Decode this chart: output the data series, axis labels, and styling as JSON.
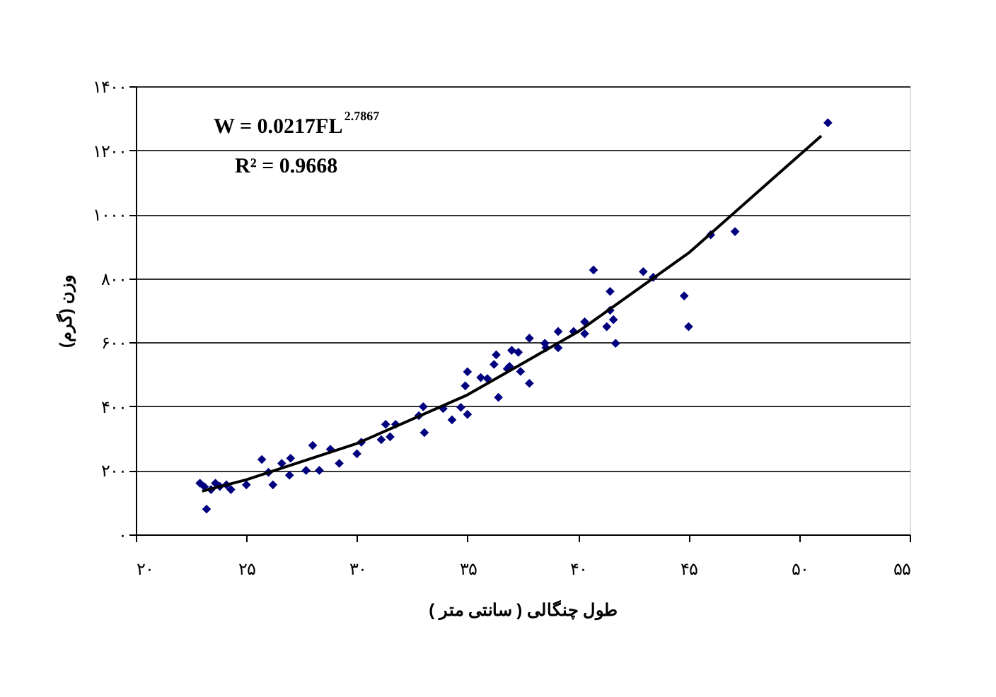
{
  "chart_data": {
    "type": "scatter",
    "xlabel": "طول چنگالی ( سانتی متر )",
    "ylabel": "وزن (گرم)",
    "annotations": [
      "W = 0.0217FL$^{2.7867}$",
      "R² = 0.9668"
    ],
    "xlim": [
      20,
      55
    ],
    "xticks": [
      {
        "value": 20,
        "label": "۲۰"
      },
      {
        "value": 25,
        "label": "۲۵"
      },
      {
        "value": 30,
        "label": "۳۰"
      },
      {
        "value": 35,
        "label": "۳۵"
      },
      {
        "value": 40,
        "label": "۴۰"
      },
      {
        "value": 45,
        "label": "۴۵"
      },
      {
        "value": 50,
        "label": "۵۰"
      },
      {
        "value": 55,
        "label": "۵۵"
      }
    ],
    "ylim": [
      0,
      1400
    ],
    "yticks": [
      {
        "value": 0,
        "label": "۰"
      },
      {
        "value": 200,
        "label": "۲۰۰"
      },
      {
        "value": 400,
        "label": "۴۰۰"
      },
      {
        "value": 600,
        "label": "۶۰۰"
      },
      {
        "value": 800,
        "label": "۸۰۰"
      },
      {
        "value": 1000,
        "label": "۱۰۰۰"
      },
      {
        "value": 1200,
        "label": "۱۲۰۰"
      },
      {
        "value": 1400,
        "label": "۱۴۰۰"
      }
    ],
    "grid": "y",
    "series": [
      {
        "marker": "diamond",
        "color": "#00007f",
        "x": [
          22.9,
          23.1,
          23.2,
          23.4,
          23.6,
          23.8,
          24.1,
          24.3,
          25.0,
          25.7,
          26.0,
          26.2,
          26.6,
          26.95,
          27.0,
          27.7,
          28.0,
          28.3,
          28.8,
          29.2,
          30.0,
          30.2,
          31.1,
          31.3,
          31.5,
          31.75,
          32.8,
          33.0,
          33.05,
          33.9,
          34.3,
          34.7,
          34.9,
          35.0,
          35.0,
          35.6,
          35.9,
          36.2,
          36.3,
          36.4,
          36.8,
          36.9,
          37.0,
          37.3,
          37.4,
          37.8,
          37.8,
          38.5,
          38.55,
          39.1,
          39.1,
          39.8,
          40.3,
          40.3,
          40.7,
          41.3,
          41.45,
          41.45,
          41.6,
          41.7,
          42.95,
          43.4,
          44.8,
          45.0,
          46.0,
          47.1,
          51.3
        ],
        "values": [
          160,
          149,
          79,
          140,
          160,
          150,
          155,
          140,
          155,
          234,
          194,
          155,
          222,
          185,
          238,
          200,
          278,
          200,
          266,
          222,
          252,
          288,
          296,
          344,
          305,
          344,
          371,
          399,
          318,
          393,
          358,
          397,
          464,
          375,
          508,
          490,
          487,
          531,
          561,
          428,
          517,
          525,
          575,
          569,
          509,
          472,
          613,
          597,
          583,
          634,
          583,
          634,
          664,
          627,
          826,
          649,
          759,
          700,
          671,
          597,
          821,
          803,
          745,
          649,
          936,
          946,
          1286
        ]
      },
      {
        "type": "line",
        "marker": "none",
        "line_style": "solid",
        "color": "#000000",
        "x": [
          23,
          25,
          30,
          35,
          40,
          45,
          51
        ],
        "values": [
          135,
          171,
          284,
          436,
          633,
          879,
          1245
        ]
      }
    ]
  }
}
